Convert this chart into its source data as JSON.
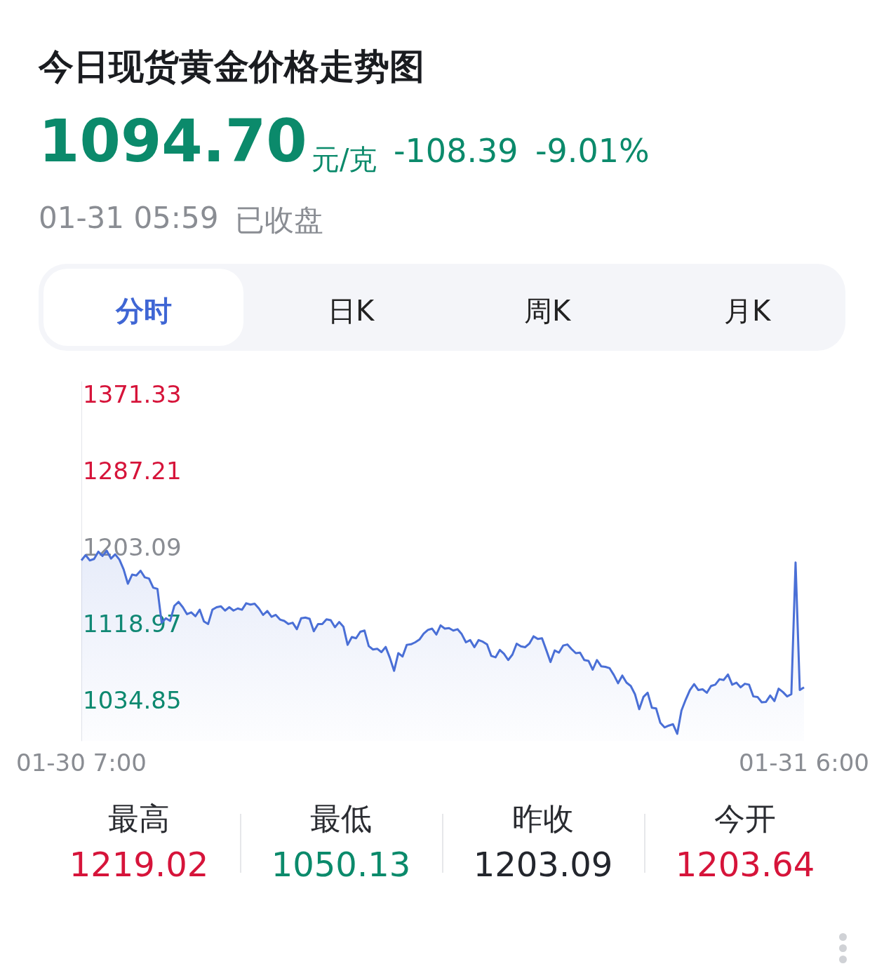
{
  "chart_data": {
    "type": "area",
    "title": "今日现货黄金价格走势图",
    "annotations": [
      "1094.70",
      "元/克",
      "-108.39",
      "-9.01%",
      "01-31 05:59",
      "已收盘",
      "分时",
      "日K",
      "周K",
      "月K",
      "最高",
      "1219.02",
      "最低",
      "1050.13",
      "昨收",
      "1203.09",
      "今开",
      "1203.64"
    ],
    "categories": [
      "01-30 7:00",
      null,
      null,
      null,
      null,
      null,
      null,
      null,
      null,
      null,
      null,
      null,
      null,
      null,
      null,
      null,
      null,
      null,
      null,
      null,
      null,
      null,
      null,
      null,
      null,
      null,
      null,
      null,
      null,
      null,
      null,
      null,
      null,
      null,
      null,
      null,
      null,
      null,
      null,
      null,
      null,
      null,
      null,
      null,
      null,
      null,
      null,
      null,
      null,
      null,
      null,
      null,
      null,
      null,
      null,
      null,
      null,
      null,
      null,
      null,
      null,
      null,
      null,
      null,
      null,
      null,
      null,
      null,
      null,
      null,
      null,
      null,
      null,
      null,
      null,
      null,
      null,
      null,
      null,
      null,
      null,
      null,
      null,
      null,
      null,
      null,
      null,
      null,
      null,
      null,
      null,
      null,
      null,
      null,
      null,
      null,
      null,
      null,
      null,
      null,
      null,
      null,
      null,
      null,
      null,
      null,
      null,
      null,
      null,
      null,
      null,
      null,
      null,
      null,
      null,
      null,
      null,
      null,
      null,
      null,
      null,
      null,
      null,
      null,
      null,
      null,
      null,
      null,
      null,
      null,
      null,
      null,
      null,
      null,
      null,
      null,
      null,
      null,
      null,
      null,
      null,
      null,
      null,
      null,
      null,
      null,
      null,
      null,
      null,
      null,
      null,
      null,
      null,
      null,
      null,
      null,
      null,
      null,
      null,
      null,
      null,
      null,
      null,
      null,
      null,
      null,
      null,
      null,
      null,
      null,
      null,
      "01-31 6:00"
    ],
    "series": [
      {
        "color": "#4a6fd6",
        "values": [
          1188.5,
          1194.2,
          1188.5,
          1190.0,
          1198.0,
          1193.4,
          1199.1,
          1190.5,
          1195.1,
          1189.3,
          1178.5,
          1162.8,
          1172.8,
          1171.9,
          1177.1,
          1169.9,
          1168.5,
          1158.5,
          1157.1,
          1119.9,
          1124.8,
          1121.9,
          1138.5,
          1142.8,
          1137.0,
          1129.3,
          1131.3,
          1127.1,
          1134.2,
          1121.4,
          1118.5,
          1134.2,
          1137.0,
          1138.0,
          1133.3,
          1137.0,
          1133.3,
          1135.6,
          1134.2,
          1141.3,
          1139.9,
          1140.8,
          1135.6,
          1128.5,
          1132.8,
          1126.4,
          1128.5,
          1123.4,
          1121.9,
          1118.5,
          1119.9,
          1112.8,
          1124.8,
          1125.6,
          1124.2,
          1110.5,
          1118.5,
          1118.5,
          1123.6,
          1122.7,
          1115.0,
          1120.7,
          1115.6,
          1095.6,
          1104.2,
          1102.8,
          1110.0,
          1111.3,
          1094.2,
          1090.5,
          1091.3,
          1087.6,
          1093.3,
          1081.3,
          1067.0,
          1086.5,
          1082.8,
          1095.6,
          1096.2,
          1098.4,
          1101.4,
          1108.0,
          1112.0,
          1113.4,
          1106.9,
          1117.0,
          1113.4,
          1114.0,
          1111.3,
          1112.8,
          1107.4,
          1098.4,
          1100.8,
          1093.0,
          1100.8,
          1099.0,
          1096.0,
          1083.4,
          1081.9,
          1090.0,
          1085.8,
          1078.9,
          1084.9,
          1096.9,
          1093.9,
          1093.0,
          1096.9,
          1105.0,
          1102.0,
          1102.9,
          1090.0,
          1076.7,
          1089.4,
          1087.0,
          1094.8,
          1096.0,
          1090.9,
          1086.4,
          1087.0,
          1078.9,
          1078.0,
          1068.3,
          1078.9,
          1072.0,
          1071.4,
          1069.9,
          1062.4,
          1053.4,
          1061.8,
          1054.0,
          1050.4,
          1041.3,
          1024.8,
          1038.3,
          1042.9,
          1026.4,
          1025.7,
          1009.8,
          1004.8,
          1006.8,
          1008.3,
          997.8,
          1023.4,
          1035.3,
          1045.9,
          1052.4,
          1045.9,
          1046.7,
          1042.9,
          1050.4,
          1051.8,
          1057.8,
          1057.0,
          1063.0,
          1051.8,
          1054.0,
          1048.9,
          1052.8,
          1051.8,
          1038.9,
          1038.3,
          1032.4,
          1032.9,
          1039.9,
          1033.8,
          1047.4,
          1043.7,
          1038.9,
          1041.3,
          1186.1,
          1045.9,
          1048.9
        ]
      }
    ],
    "ylim": [
      990,
      1385
    ],
    "yticks": [
      1034.85,
      1118.97,
      1203.09,
      1287.21,
      1371.33
    ],
    "grid": false,
    "marker": "none",
    "line_style": "solid"
  }
}
